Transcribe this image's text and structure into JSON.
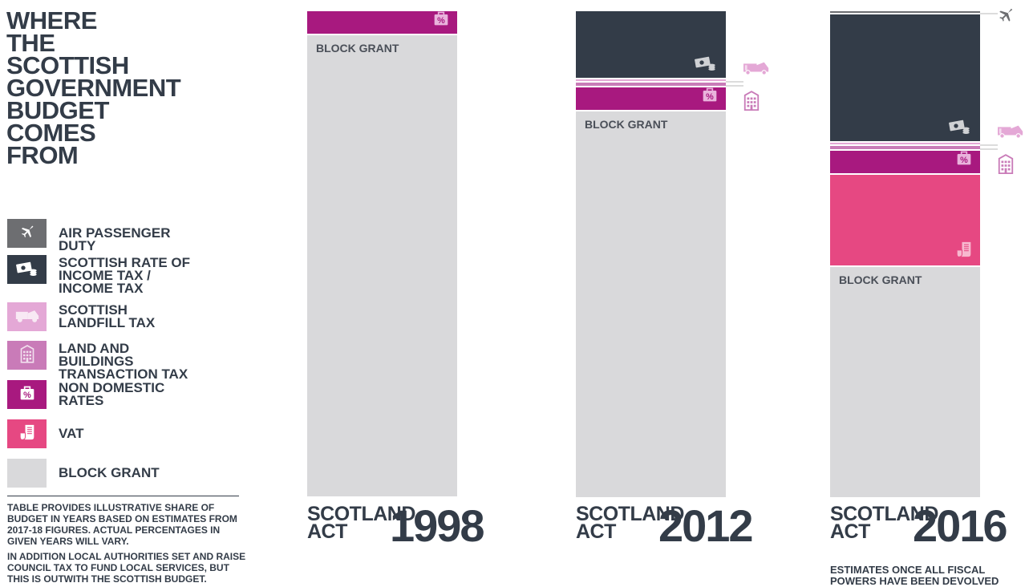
{
  "title": "WHERE THE SCOTTISH GOVERNMENT BUDGET COMES FROM",
  "colors": {
    "air_passenger_duty": "#6d6e71",
    "income_tax": "#333c48",
    "landfill_tax": "#e4a8d6",
    "land_buildings_tax": "#c97bb8",
    "non_domestic_rates": "#a8197f",
    "vat": "#e64882",
    "block_grant": "#d9d9db"
  },
  "legend": [
    {
      "key": "air_passenger_duty",
      "label": "AIR PASSENGER DUTY",
      "icon": "plane-icon"
    },
    {
      "key": "income_tax",
      "label": "SCOTTISH RATE OF INCOME TAX / INCOME TAX",
      "icon": "money-icon"
    },
    {
      "key": "landfill_tax",
      "label": "SCOTTISH LANDFILL TAX",
      "icon": "truck-icon"
    },
    {
      "key": "land_buildings_tax",
      "label": "LAND AND BUILDINGS TRANSACTION TAX",
      "icon": "building-icon"
    },
    {
      "key": "non_domestic_rates",
      "label": "NON DOMESTIC RATES",
      "icon": "percent-bag-icon"
    },
    {
      "key": "vat",
      "label": "VAT",
      "icon": "receipt-icon"
    },
    {
      "key": "block_grant",
      "label": "BLOCK GRANT",
      "icon": ""
    }
  ],
  "notes": [
    "TABLE PROVIDES ILLUSTRATIVE SHARE OF BUDGET IN YEARS BASED ON ESTIMATES FROM 2017-18 FIGURES. ACTUAL PERCENTAGES IN GIVEN YEARS WILL VARY.",
    "IN ADDITION LOCAL AUTHORITIES SET AND RAISE COUNCIL TAX TO FUND LOCAL SERVICES, BUT THIS IS OUTWITH THE SCOTTISH BUDGET."
  ],
  "act_word_1": "SCOTLAND",
  "act_word_2": "ACT",
  "block_grant_label": "BLOCK GRANT",
  "footnote_2016": "ESTIMATES ONCE ALL FISCAL POWERS HAVE BEEN DEVOLVED",
  "chart_data": {
    "type": "bar",
    "stacked": true,
    "unit": "% of budget (illustrative)",
    "ylim": [
      0,
      100
    ],
    "categories": [
      "1998",
      "2012",
      "2016"
    ],
    "series": [
      {
        "key": "air_passenger_duty",
        "name": "AIR PASSENGER DUTY",
        "values": [
          0,
          0,
          0.5
        ]
      },
      {
        "key": "income_tax",
        "name": "SCOTTISH RATE OF INCOME TAX / INCOME TAX",
        "values": [
          0,
          14,
          26.5
        ]
      },
      {
        "key": "landfill_tax",
        "name": "SCOTTISH LANDFILL TAX",
        "values": [
          0,
          0.5,
          0.5
        ]
      },
      {
        "key": "land_buildings_tax",
        "name": "LAND AND BUILDINGS TRANSACTION TAX",
        "values": [
          0,
          1,
          1
        ]
      },
      {
        "key": "non_domestic_rates",
        "name": "NON DOMESTIC RATES",
        "values": [
          5,
          5,
          5
        ]
      },
      {
        "key": "vat",
        "name": "VAT",
        "values": [
          0,
          0,
          19
        ]
      },
      {
        "key": "block_grant",
        "name": "BLOCK GRANT",
        "values": [
          95,
          79.5,
          47.5
        ]
      }
    ]
  }
}
